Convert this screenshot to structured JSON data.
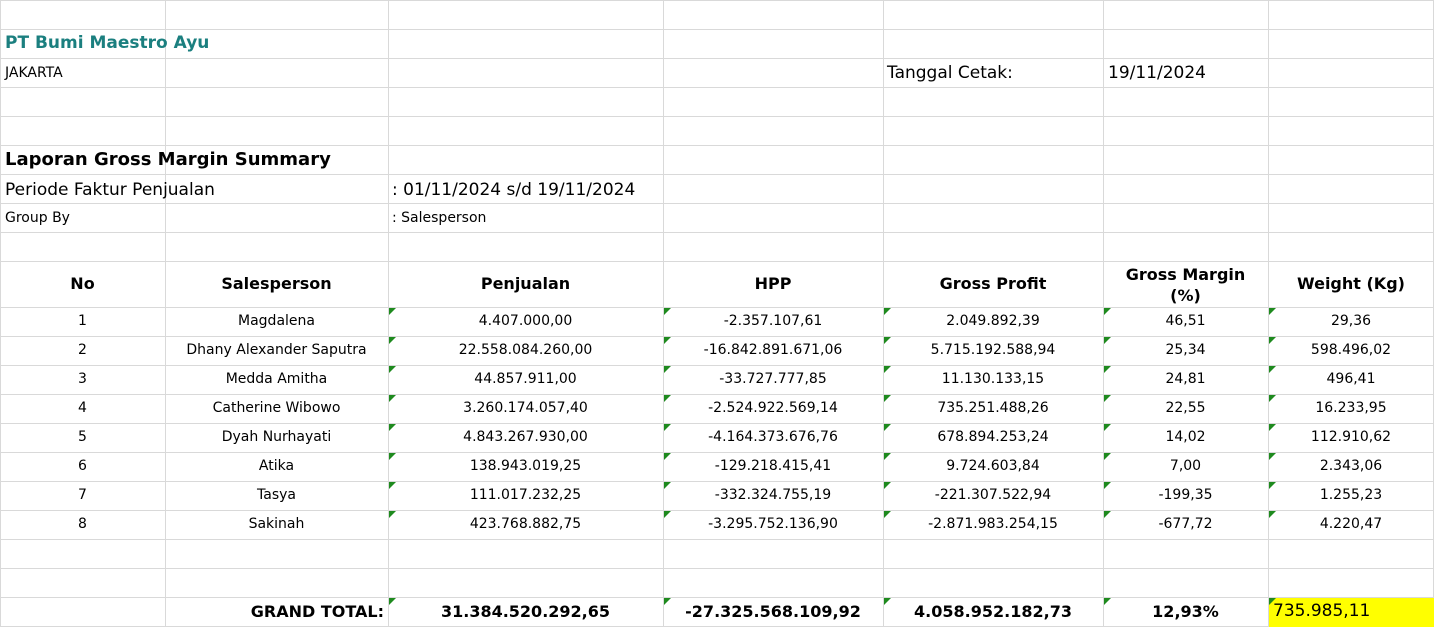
{
  "company": {
    "name": "PT Bumi Maestro Ayu",
    "city": "JAKARTA",
    "print_date_label": "Tanggal Cetak:",
    "print_date": "19/11/2024"
  },
  "report": {
    "title": "Laporan Gross Margin Summary",
    "period_label": "Periode Faktur Penjualan",
    "period_value": ": 01/11/2024 s/d 19/11/2024",
    "group_label": "Group By",
    "group_value": ": Salesperson"
  },
  "table": {
    "headers": {
      "no": "No",
      "salesperson": "Salesperson",
      "penjualan": "Penjualan",
      "hpp": "HPP",
      "gross_profit": "Gross Profit",
      "gross_margin_line1": "Gross Margin",
      "gross_margin_line2": "(%)",
      "weight": "Weight (Kg)"
    },
    "rows": [
      {
        "no": "1",
        "name": "Magdalena",
        "penjualan": "4.407.000,00",
        "hpp": "-2.357.107,61",
        "gp": "2.049.892,39",
        "gm": "46,51",
        "weight": "29,36"
      },
      {
        "no": "2",
        "name": "Dhany Alexander Saputra",
        "penjualan": "22.558.084.260,00",
        "hpp": "-16.842.891.671,06",
        "gp": "5.715.192.588,94",
        "gm": "25,34",
        "weight": "598.496,02"
      },
      {
        "no": "3",
        "name": "Medda Amitha",
        "penjualan": "44.857.911,00",
        "hpp": "-33.727.777,85",
        "gp": "11.130.133,15",
        "gm": "24,81",
        "weight": "496,41"
      },
      {
        "no": "4",
        "name": "Catherine Wibowo",
        "penjualan": "3.260.174.057,40",
        "hpp": "-2.524.922.569,14",
        "gp": "735.251.488,26",
        "gm": "22,55",
        "weight": "16.233,95"
      },
      {
        "no": "5",
        "name": "Dyah Nurhayati",
        "penjualan": "4.843.267.930,00",
        "hpp": "-4.164.373.676,76",
        "gp": "678.894.253,24",
        "gm": "14,02",
        "weight": "112.910,62"
      },
      {
        "no": "6",
        "name": "Atika",
        "penjualan": "138.943.019,25",
        "hpp": "-129.218.415,41",
        "gp": "9.724.603,84",
        "gm": "7,00",
        "weight": "2.343,06"
      },
      {
        "no": "7",
        "name": "Tasya",
        "penjualan": "111.017.232,25",
        "hpp": "-332.324.755,19",
        "gp": "-221.307.522,94",
        "gm": "-199,35",
        "weight": "1.255,23"
      },
      {
        "no": "8",
        "name": "Sakinah",
        "penjualan": "423.768.882,75",
        "hpp": "-3.295.752.136,90",
        "gp": "-2.871.983.254,15",
        "gm": "-677,72",
        "weight": "4.220,47"
      }
    ],
    "grand_total": {
      "label": "GRAND TOTAL:",
      "penjualan": "31.384.520.292,65",
      "hpp": "-27.325.568.109,92",
      "gp": "4.058.952.182,73",
      "gm": "12,93%",
      "weight": "735.985,11"
    }
  },
  "colors": {
    "company_name": "#1b7f7f",
    "gridline": "#d9d9d9",
    "error_indicator": "#1e8a1e",
    "highlight": "#ffff00"
  }
}
